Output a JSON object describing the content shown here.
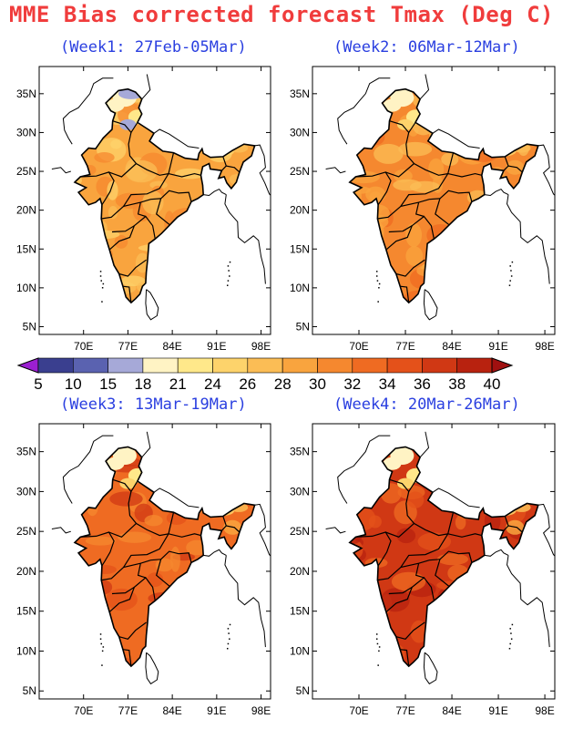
{
  "title": "MME Bias corrected forecast Tmax (Deg C)",
  "panels": [
    {
      "title": "(Week1: 27Feb-05Mar)",
      "intensity": 0
    },
    {
      "title": "(Week2: 06Mar-12Mar)",
      "intensity": 1
    },
    {
      "title": "(Week3: 13Mar-19Mar)",
      "intensity": 2
    },
    {
      "title": "(Week4: 20Mar-26Mar)",
      "intensity": 3
    }
  ],
  "axes": {
    "lon_ticks": [
      "70E",
      "77E",
      "84E",
      "91E",
      "98E"
    ],
    "lat_ticks": [
      "35N",
      "30N",
      "25N",
      "20N",
      "15N",
      "10N",
      "5N"
    ]
  },
  "colorbar": {
    "labels": [
      "5",
      "10",
      "15",
      "18",
      "21",
      "24",
      "26",
      "28",
      "30",
      "32",
      "34",
      "36",
      "38",
      "40"
    ],
    "colors": [
      "#9b1fd1",
      "#3a3f8f",
      "#5a62b0",
      "#a6a9d8",
      "#fff3c4",
      "#ffe88a",
      "#fdd36b",
      "#fbbd55",
      "#f9a43e",
      "#f5882f",
      "#ef6b22",
      "#e4511a",
      "#d03814",
      "#b8220f",
      "#a01010"
    ]
  }
}
